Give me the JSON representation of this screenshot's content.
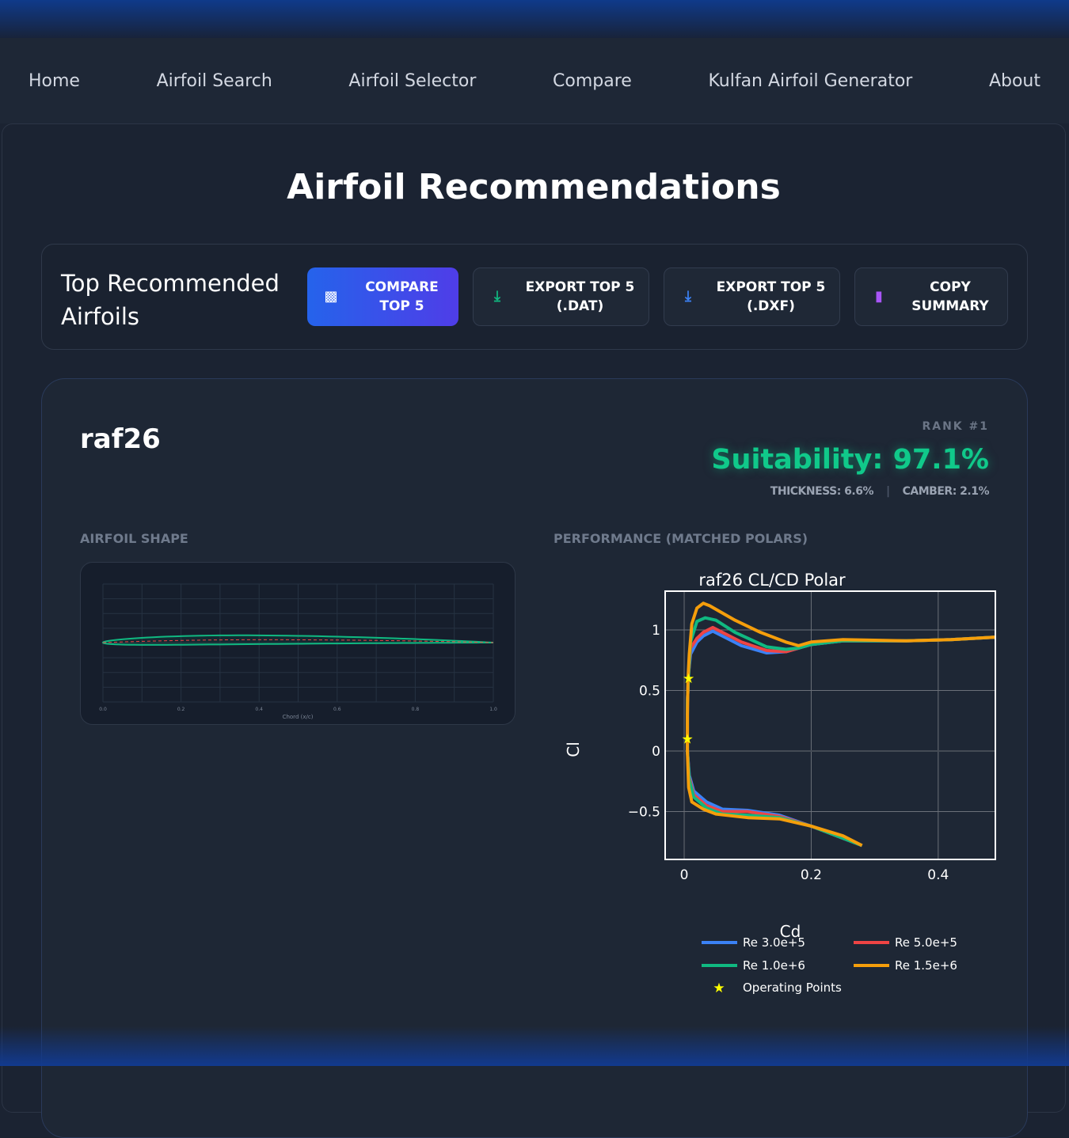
{
  "nav": [
    "Home",
    "Airfoil Search",
    "Airfoil Selector",
    "Compare",
    "Kulfan Airfoil Generator",
    "About"
  ],
  "page_title": "Airfoil Recommendations",
  "toolbar": {
    "title": "Top Recommended Airfoils",
    "buttons": [
      {
        "label": "COMPARE TOP 5",
        "icon": "layers-icon",
        "color": "#ffffff"
      },
      {
        "label": "EXPORT TOP 5 (.DAT)",
        "icon": "download-icon",
        "color": "#10b981"
      },
      {
        "label": "EXPORT TOP 5 (.DXF)",
        "icon": "download-icon",
        "color": "#3b82f6"
      },
      {
        "label": "COPY SUMMARY",
        "icon": "clipboard-icon",
        "color": "#a855f7"
      }
    ]
  },
  "card": {
    "name": "raf26",
    "rank": "RANK #1",
    "suitability": "Suitability: 97.1%",
    "thickness": "THICKNESS: 6.6%",
    "camber": "CAMBER: 2.1%",
    "shape_label": "AIRFOIL SHAPE",
    "perf_label": "PERFORMANCE (MATCHED POLARS)"
  },
  "shape_chart": {
    "xlabel": "Chord (x/c)",
    "ticks": [
      "0.0",
      "0.2",
      "0.4",
      "0.6",
      "0.8",
      "1.0"
    ],
    "thickness_pct": 6.6,
    "camber_pct": 2.1,
    "colors": {
      "outline": "#10b981",
      "camber": "#ef4444"
    }
  },
  "chart_data": {
    "type": "line",
    "title": "raf26 CL/CD Polar",
    "xlabel": "Cd",
    "ylabel": "Cl",
    "xlim": [
      -0.03,
      0.49
    ],
    "ylim": [
      -0.895,
      1.32
    ],
    "xticks": [
      "0",
      "0.2",
      "0.4"
    ],
    "xtick_values": [
      0,
      0.2,
      0.4
    ],
    "yticks": [
      "1",
      "0.5",
      "0",
      "−0.5"
    ],
    "ytick_values": [
      1,
      0.5,
      0,
      -0.5
    ],
    "grid": true,
    "legend": "bottom",
    "series": [
      {
        "name": "Re 3.0e+5",
        "color": "#3b82f6",
        "cd": [
          0.28,
          0.2,
          0.15,
          0.1,
          0.06,
          0.035,
          0.015,
          0.008,
          0.005,
          0.005,
          0.007,
          0.01,
          0.02,
          0.03,
          0.045,
          0.06,
          0.09,
          0.13,
          0.16,
          0.18,
          0.2,
          0.25,
          0.35,
          0.42,
          0.49
        ],
        "cl": [
          -0.78,
          -0.62,
          -0.53,
          -0.49,
          -0.48,
          -0.42,
          -0.33,
          -0.2,
          0,
          0.4,
          0.65,
          0.8,
          0.9,
          0.95,
          0.99,
          0.95,
          0.87,
          0.81,
          0.82,
          0.85,
          0.88,
          0.91,
          0.91,
          0.92,
          0.94
        ]
      },
      {
        "name": "Re 5.0e+5",
        "color": "#ef4444",
        "cd": [
          0.28,
          0.2,
          0.15,
          0.1,
          0.06,
          0.035,
          0.015,
          0.008,
          0.005,
          0.005,
          0.007,
          0.01,
          0.02,
          0.03,
          0.045,
          0.06,
          0.09,
          0.13,
          0.16,
          0.18,
          0.2,
          0.25,
          0.35,
          0.42,
          0.49
        ],
        "cl": [
          -0.78,
          -0.62,
          -0.54,
          -0.5,
          -0.5,
          -0.45,
          -0.36,
          -0.22,
          0,
          0.4,
          0.65,
          0.85,
          0.93,
          0.98,
          1.02,
          0.98,
          0.9,
          0.83,
          0.82,
          0.85,
          0.88,
          0.91,
          0.91,
          0.92,
          0.94
        ]
      },
      {
        "name": "Re 1.0e+6",
        "color": "#10b981",
        "cd": [
          0.28,
          0.2,
          0.15,
          0.1,
          0.06,
          0.035,
          0.015,
          0.008,
          0.005,
          0.005,
          0.007,
          0.01,
          0.02,
          0.033,
          0.05,
          0.08,
          0.13,
          0.16,
          0.18,
          0.2,
          0.25,
          0.35,
          0.42,
          0.49
        ],
        "cl": [
          -0.78,
          -0.62,
          -0.55,
          -0.53,
          -0.52,
          -0.47,
          -0.38,
          -0.24,
          0,
          0.4,
          0.65,
          0.9,
          1.07,
          1.1,
          1.08,
          0.98,
          0.86,
          0.84,
          0.85,
          0.88,
          0.91,
          0.91,
          0.92,
          0.94
        ]
      },
      {
        "name": "Re 1.5e+6",
        "color": "#f59e0b",
        "cd": [
          0.28,
          0.25,
          0.2,
          0.15,
          0.1,
          0.05,
          0.03,
          0.012,
          0.007,
          0.005,
          0.005,
          0.006,
          0.008,
          0.012,
          0.02,
          0.03,
          0.04,
          0.08,
          0.12,
          0.16,
          0.18,
          0.2,
          0.25,
          0.35,
          0.42,
          0.49
        ],
        "cl": [
          -0.78,
          -0.7,
          -0.62,
          -0.56,
          -0.55,
          -0.52,
          -0.48,
          -0.42,
          -0.3,
          0,
          0.3,
          0.6,
          0.8,
          1.05,
          1.18,
          1.22,
          1.2,
          1.08,
          0.98,
          0.9,
          0.87,
          0.9,
          0.92,
          0.91,
          0.92,
          0.94
        ]
      }
    ],
    "operating_points": {
      "name": "Operating Points",
      "color": "#ffff00",
      "cd": [
        0.007,
        0.005
      ],
      "cl": [
        0.6,
        0.1
      ]
    }
  }
}
